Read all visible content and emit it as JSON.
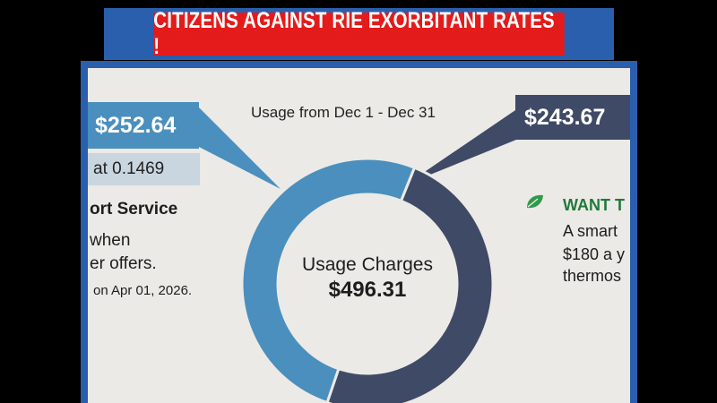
{
  "banner": {
    "text": "CITIZENS AGAINST RIE EXORBITANT RATES !"
  },
  "bill": {
    "usage_range": "Usage from Dec  1 - Dec 31",
    "left_amount": "$252.64",
    "right_amount": "$243.67",
    "rate_text": "at 0.1469",
    "support_text": "ort Service",
    "when_text": "when",
    "offers_text": "er offers.",
    "apr_text": "on Apr 01, 2026.",
    "want_text": "WANT T",
    "smart_text": "A smart",
    "year_text": "$180 a y",
    "thermo_text": "thermos",
    "center_label": "Usage Charges",
    "center_value": "$496.31"
  },
  "chart_data": {
    "type": "pie",
    "categories": [
      "",
      ""
    ],
    "values": [
      252.64,
      243.67
    ],
    "colors": [
      "#4a8fbd",
      "#3f4a66"
    ],
    "title": "",
    "total": 496.31
  }
}
